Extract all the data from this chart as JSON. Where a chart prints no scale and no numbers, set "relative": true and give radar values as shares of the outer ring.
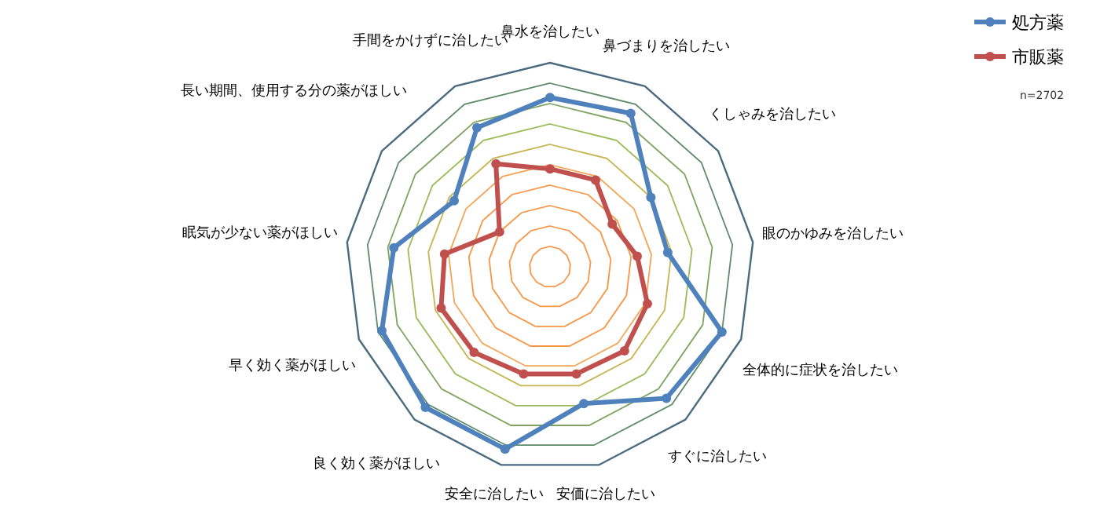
{
  "chart_data": {
    "type": "radar",
    "relative": true,
    "grid": true,
    "legend": "top right",
    "marker": "circle",
    "line_style": "solid",
    "categories": [
      "鼻水を治したい",
      "鼻づまりを治したい",
      "くしゃみを治したい",
      "眼のかゆみを治したい",
      "全体的に症状を治したい",
      "すぐに治したい",
      "安価に治したい",
      "安全に治したい",
      "良く効く薬がほしい",
      "早く効く薬がほしい",
      "眠気が少ない薬がほしい",
      "長い期間、使用する分の薬がほしい",
      "手間をかけずに治したい"
    ],
    "series": [
      {
        "name": "処方薬",
        "color": "#4f81bd",
        "values": [
          0.83,
          0.85,
          0.6,
          0.58,
          0.9,
          0.86,
          0.69,
          0.92,
          0.92,
          0.88,
          0.77,
          0.57,
          0.77
        ]
      },
      {
        "name": "市販薬",
        "color": "#c0504d",
        "values": [
          0.48,
          0.48,
          0.37,
          0.43,
          0.51,
          0.55,
          0.54,
          0.54,
          0.56,
          0.57,
          0.52,
          0.3,
          0.57
        ]
      }
    ],
    "annotations": [
      "n=2702"
    ]
  }
}
